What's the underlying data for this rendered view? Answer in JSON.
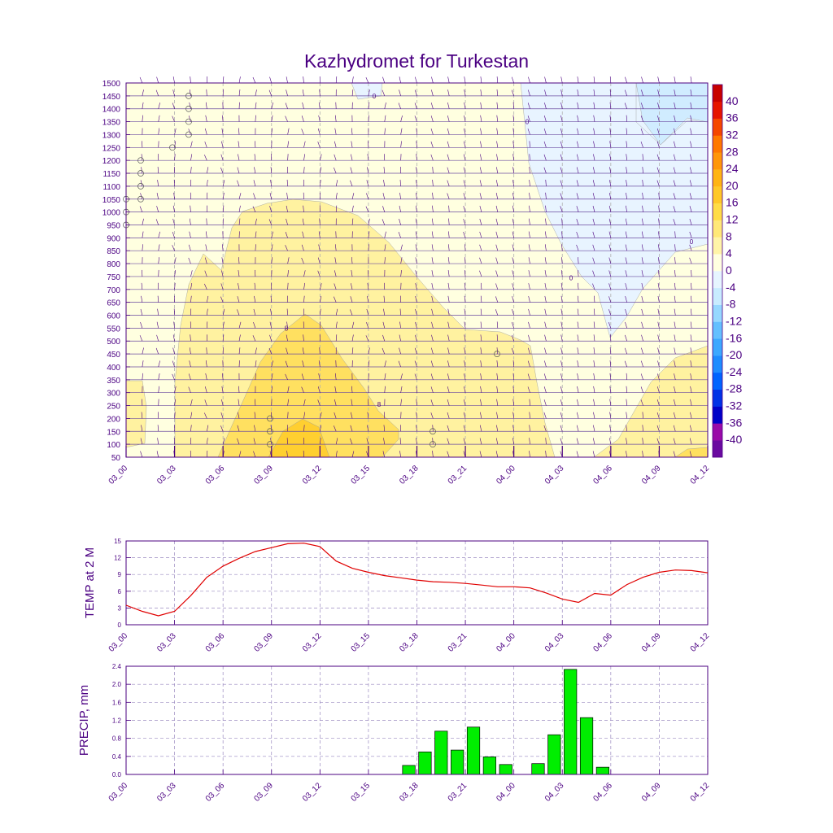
{
  "title": "Kazhydromet for Turkestan",
  "time_labels": [
    "03_00",
    "03_03",
    "03_06",
    "03_09",
    "03_12",
    "03_15",
    "03_18",
    "03_21",
    "04_00",
    "04_03",
    "04_06",
    "04_09",
    "04_12"
  ],
  "colors": {
    "axis": "#4b0082",
    "temp_line": "#e00000",
    "precip_bar": "#00ee00",
    "barbs": "#4b0082"
  },
  "chart_data": [
    {
      "type": "heatmap",
      "name": "cross-section",
      "y_tick_labels": [
        "50",
        "100",
        "150",
        "200",
        "250",
        "300",
        "350",
        "400",
        "450",
        "500",
        "550",
        "600",
        "650",
        "700",
        "750",
        "800",
        "850",
        "900",
        "950",
        "1000",
        "1050",
        "1100",
        "1150",
        "1200",
        "1250",
        "1300",
        "1350",
        "1400",
        "1450",
        "1500"
      ],
      "ylim": [
        50,
        1500
      ],
      "xlim": [
        0,
        36
      ],
      "contour_labels": [
        "0",
        "8",
        "0",
        "0",
        "0",
        "8"
      ],
      "colorbar": {
        "labels": [
          "40",
          "36",
          "32",
          "28",
          "24",
          "20",
          "16",
          "12",
          "8",
          "4",
          "0",
          "-4",
          "-8",
          "-12",
          "-16",
          "-20",
          "-24",
          "-28",
          "-32",
          "-36",
          "-40"
        ],
        "colors": [
          "#6a0aa0",
          "#9a0aa8",
          "#0000c8",
          "#0032e6",
          "#0064ff",
          "#1e8cff",
          "#3ca8ff",
          "#64c0ff",
          "#96d8ff",
          "#c8ecff",
          "#e6f5ff",
          "#ffffe0",
          "#fff4a8",
          "#ffe878",
          "#ffdc46",
          "#ffc828",
          "#ffb414",
          "#ff960a",
          "#ff7800",
          "#f54600",
          "#e61400",
          "#c80000"
        ]
      }
    },
    {
      "type": "line",
      "name": "temperature",
      "ylabel": "TEMP at 2 M",
      "ylim": [
        0,
        15
      ],
      "y_ticks": [
        "0",
        "3",
        "6",
        "9",
        "12",
        "15"
      ],
      "x": [
        0,
        1,
        2,
        3,
        4,
        5,
        6,
        7,
        8,
        9,
        10,
        11,
        12,
        13,
        14,
        15,
        16,
        17,
        18,
        19,
        20,
        21,
        22,
        23,
        24,
        25,
        26,
        27,
        28,
        29,
        30,
        31,
        32,
        33,
        34,
        35,
        36
      ],
      "values": [
        3.5,
        2.4,
        1.6,
        2.4,
        5.2,
        8.5,
        10.5,
        11.9,
        13.1,
        13.8,
        14.5,
        14.6,
        14.0,
        11.4,
        10.1,
        9.4,
        8.8,
        8.4,
        8.0,
        7.7,
        7.6,
        7.4,
        7.1,
        6.8,
        6.8,
        6.6,
        5.7,
        4.6,
        4.0,
        5.6,
        5.3,
        7.2,
        8.5,
        9.4,
        9.8,
        9.7,
        9.3
      ]
    },
    {
      "type": "bar",
      "name": "precipitation",
      "ylabel": "PRECIP, mm",
      "ylim": [
        0,
        2.4
      ],
      "y_ticks": [
        "0.0",
        "0.4",
        "0.8",
        "1.2",
        "1.6",
        "2.0",
        "2.4"
      ],
      "x": [
        17,
        18,
        19,
        20,
        21,
        22,
        23,
        24,
        25,
        26,
        27,
        28,
        29
      ],
      "values": [
        0.2,
        0.5,
        0.96,
        0.54,
        1.05,
        0.39,
        0.22,
        0,
        0.24,
        0.88,
        2.33,
        1.26,
        0.16
      ]
    }
  ]
}
